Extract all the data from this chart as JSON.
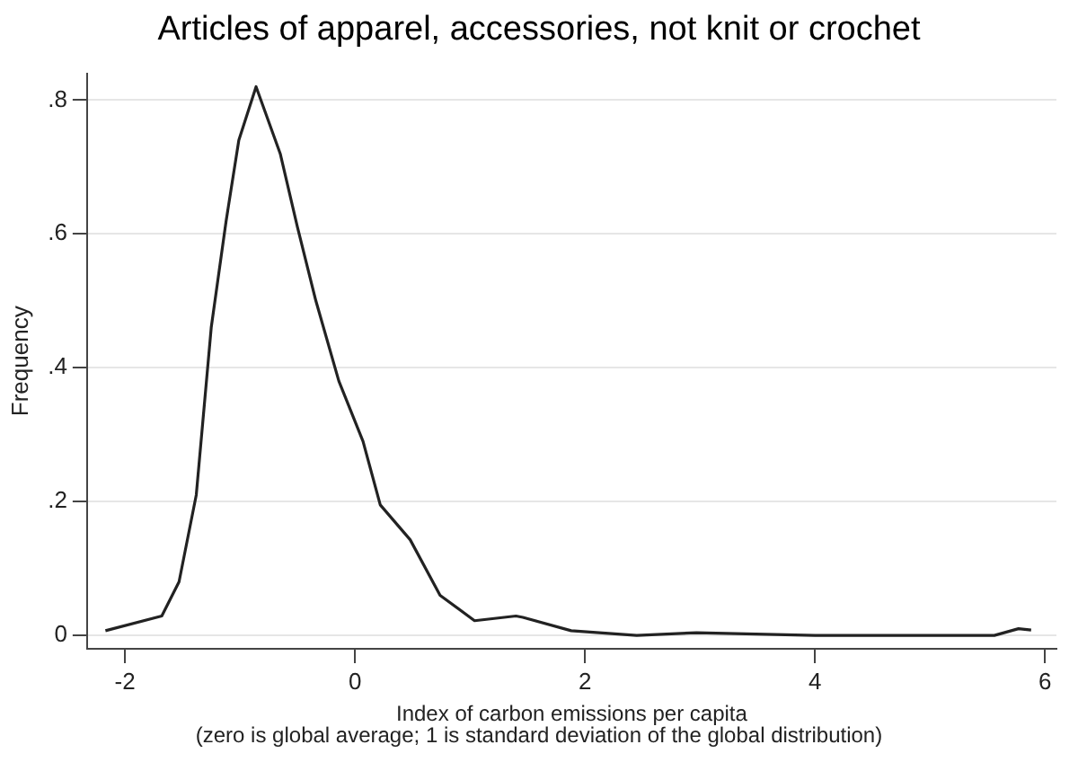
{
  "chart_data": {
    "type": "line",
    "title": "Articles of apparel, accessories, not knit or crochet",
    "xlabel": "Index of carbon emissions per capita",
    "annotations": [
      "(zero is global average; 1 is standard deviation of the global distribution)"
    ],
    "ylabel": "Frequency",
    "x": [
      -2.17,
      -1.68,
      -1.53,
      -1.38,
      -1.25,
      -1.12,
      -1.01,
      -0.86,
      -0.65,
      -0.5,
      -0.34,
      -0.14,
      0.07,
      0.22,
      0.48,
      0.74,
      1.04,
      1.4,
      1.46,
      1.88,
      2.45,
      2.97,
      4.0,
      5.56,
      5.77,
      5.88
    ],
    "series": [
      {
        "color": "#222222",
        "values": [
          0.007,
          0.029,
          0.08,
          0.21,
          0.46,
          0.62,
          0.74,
          0.82,
          0.72,
          0.61,
          0.5,
          0.38,
          0.29,
          0.195,
          0.143,
          0.06,
          0.022,
          0.029,
          0.027,
          0.007,
          0,
          0.004,
          0,
          0,
          0.01,
          0.008
        ]
      }
    ],
    "xlim": [
      -2.33,
      6.1
    ],
    "xticks": [
      -2,
      0,
      2,
      4,
      6
    ],
    "ylim": [
      -0.02,
      0.84
    ],
    "yticks": [
      {
        "value": 0,
        "label": "0"
      },
      {
        "value": 0.2,
        "label": ".2"
      },
      {
        "value": 0.4,
        "label": ".4"
      },
      {
        "value": 0.6,
        "label": ".6"
      },
      {
        "value": 0.8,
        "label": ".8"
      }
    ],
    "grid": "y",
    "legend": false,
    "marker": "none",
    "line_style": "solid"
  }
}
